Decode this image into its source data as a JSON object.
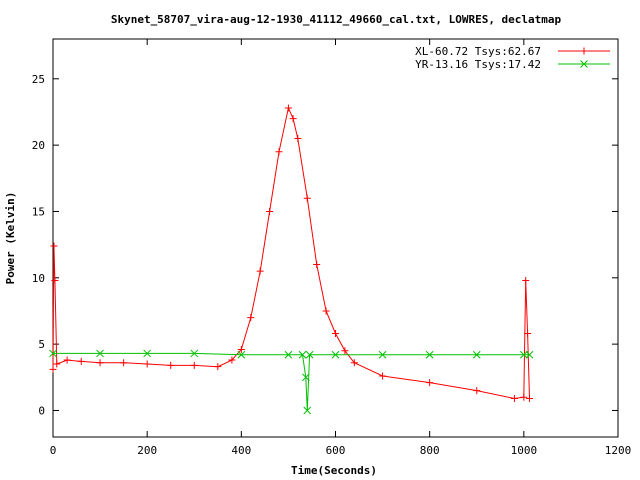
{
  "chart_data": {
    "type": "line",
    "title": "Skynet_58707_vira-aug-12-1930_41112_49660_cal.txt, LOWRES, declatmap",
    "xlabel": "Time(Seconds)",
    "ylabel": "Power (Kelvin)",
    "xlim": [
      0,
      1200
    ],
    "ylim": [
      -2,
      28
    ],
    "xticks": [
      0,
      200,
      400,
      600,
      800,
      1000,
      1200
    ],
    "yticks": [
      0,
      5,
      10,
      15,
      20,
      25
    ],
    "grid": false,
    "legend_position": "top-right",
    "series": [
      {
        "name": "XL-60.72 Tsys:62.67",
        "color": "#ff0000",
        "marker": "plus",
        "x": [
          0,
          2,
          4,
          8,
          30,
          60,
          100,
          150,
          200,
          250,
          300,
          350,
          380,
          400,
          420,
          440,
          460,
          480,
          500,
          510,
          520,
          540,
          560,
          580,
          600,
          620,
          640,
          700,
          800,
          900,
          980,
          1000,
          1004,
          1008,
          1012
        ],
        "y": [
          3.1,
          12.4,
          9.8,
          3.5,
          3.8,
          3.7,
          3.6,
          3.6,
          3.5,
          3.4,
          3.4,
          3.3,
          3.8,
          4.6,
          7.0,
          10.5,
          15.0,
          19.5,
          22.8,
          22.0,
          20.5,
          16.0,
          11.0,
          7.5,
          5.8,
          4.5,
          3.6,
          2.6,
          2.1,
          1.5,
          0.9,
          1.0,
          9.8,
          5.8,
          0.9
        ]
      },
      {
        "name": "YR-13.16 Tsys:17.42",
        "color": "#00c000",
        "marker": "x",
        "x": [
          0,
          100,
          200,
          300,
          400,
          500,
          530,
          537,
          540,
          545,
          600,
          700,
          800,
          900,
          1000,
          1012
        ],
        "y": [
          4.3,
          4.3,
          4.3,
          4.3,
          4.2,
          4.2,
          4.2,
          2.5,
          0.0,
          4.2,
          4.2,
          4.2,
          4.2,
          4.2,
          4.2,
          4.2
        ]
      }
    ]
  }
}
